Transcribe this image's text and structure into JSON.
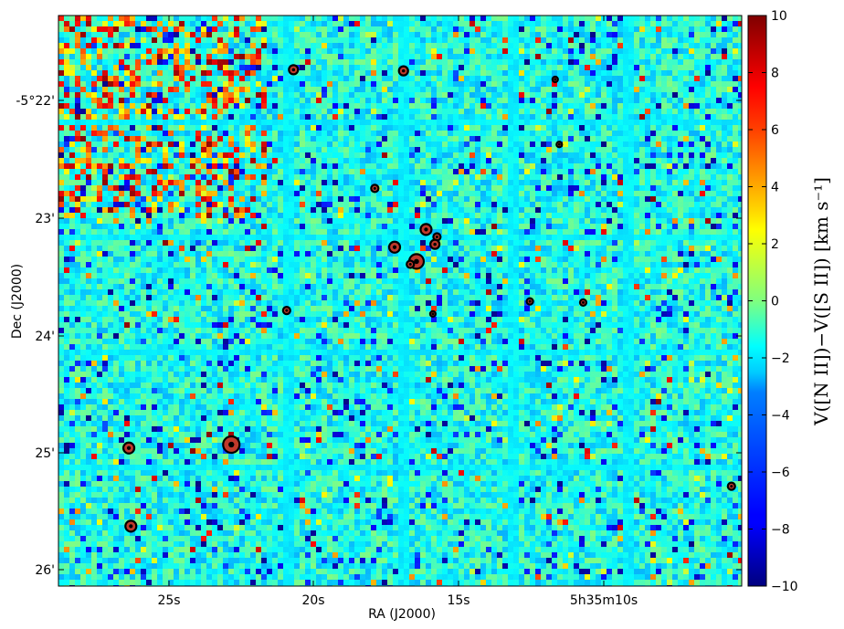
{
  "chart_data": {
    "type": "heatmap",
    "title": "",
    "xlabel": "RA (J2000)",
    "ylabel": "Dec (J2000)",
    "x_ticks": [
      "25s",
      "20s",
      "15s",
      "5h35m10s"
    ],
    "y_ticks": [
      "-5°22'",
      "23'",
      "24'",
      "25'",
      "26'"
    ],
    "colorbar": {
      "label": "V([N II])−V([S II])  [km s⁻¹]",
      "colormap": "jet",
      "min": -10,
      "max": 10,
      "ticks": [
        "10",
        "8",
        "6",
        "4",
        "2",
        "0",
        "−2",
        "−4",
        "−6",
        "−8",
        "−10"
      ]
    },
    "dominant_value_range": [
      -4,
      0
    ],
    "marked_stars": 19,
    "colors": {
      "jet_stops": [
        "#00007f",
        "#0000ff",
        "#007fff",
        "#00ffff",
        "#7fff7f",
        "#ffff00",
        "#ff7f00",
        "#ff0000",
        "#7f0000"
      ]
    }
  }
}
